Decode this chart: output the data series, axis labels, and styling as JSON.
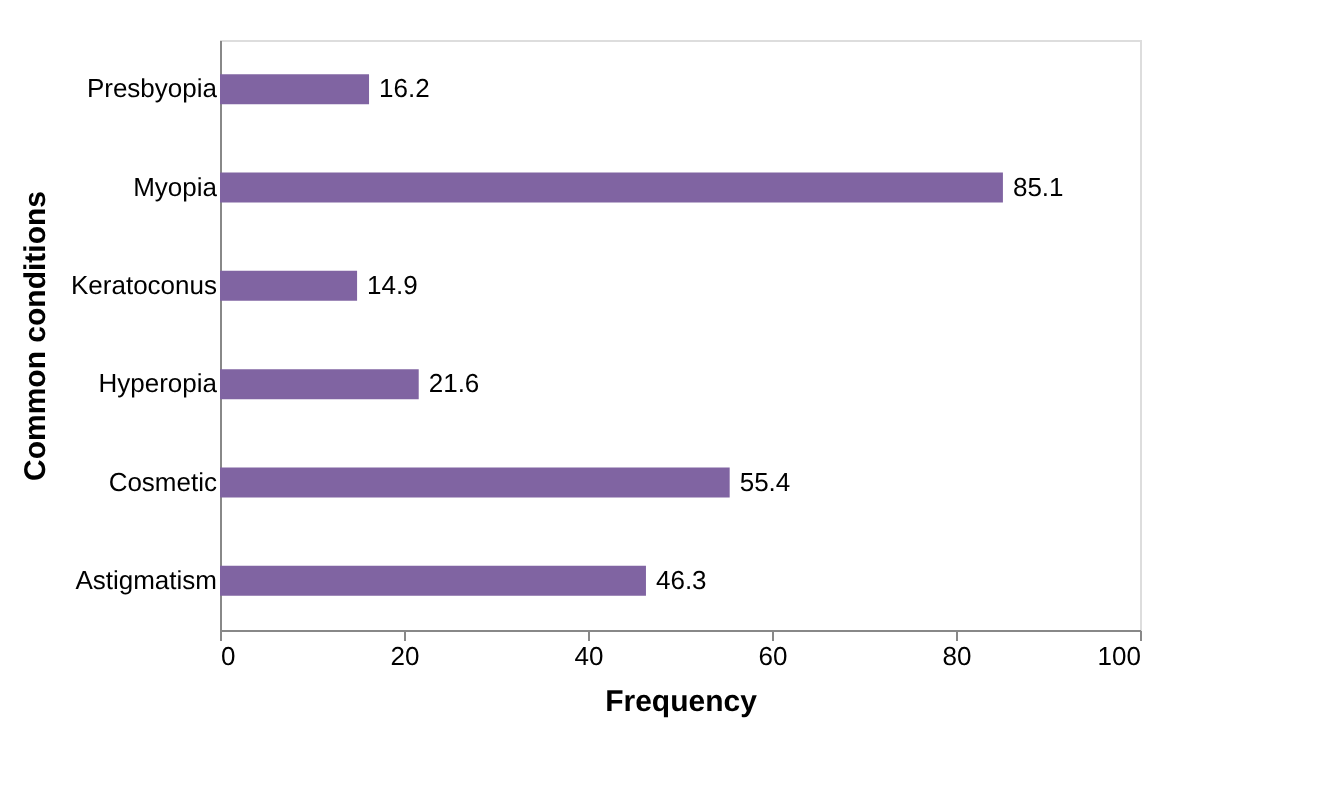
{
  "chart_data": {
    "type": "bar",
    "orientation": "horizontal",
    "xlabel": "Frequency",
    "ylabel": "Common conditions",
    "categories": [
      "Presbyopia",
      "Myopia",
      "Keratoconus",
      "Hyperopia",
      "Cosmetic",
      "Astigmatism"
    ],
    "values": [
      16.2,
      85.1,
      14.9,
      21.6,
      55.4,
      46.3
    ],
    "color": "#8064a2",
    "xlim": [
      0,
      100
    ],
    "xticks": [
      0,
      20,
      40,
      60,
      80,
      100
    ],
    "grid": false,
    "data_labels": true
  }
}
